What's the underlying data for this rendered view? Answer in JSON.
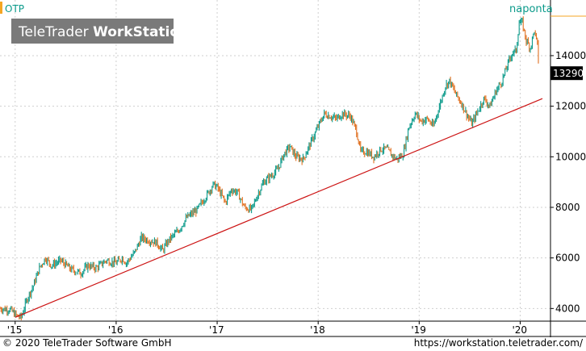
{
  "symbol": "OTP",
  "period_label": "naponta",
  "watermark": {
    "light": "TeleTrader ",
    "bold": "WorkStation"
  },
  "last_price": "13290",
  "footer": {
    "copyright": "© 2020 TeleTrader Software GmbH",
    "url": "https://workstation.teletrader.com/"
  },
  "colors": {
    "up": "#0a9a8a",
    "down": "#e07020",
    "trendline": "#cc1111",
    "accent": "#f5a623",
    "watermark_bg": "#7a7a7a"
  },
  "chart_data": {
    "type": "line",
    "title": "OTP",
    "y_ticks": [
      "4000",
      "6000",
      "8000",
      "10000",
      "12000",
      "14000"
    ],
    "x_ticks": [
      "'15",
      "'16",
      "'17",
      "'18",
      "'19",
      "'20"
    ],
    "ylim": [
      3500,
      16200
    ],
    "xlim": [
      2015.0,
      2020.3
    ],
    "grid": true,
    "series": [
      {
        "values": [
          [
            2014.85,
            4000
          ],
          [
            2014.95,
            3950
          ],
          [
            2015.02,
            3700
          ],
          [
            2015.06,
            3650
          ],
          [
            2015.12,
            4400
          ],
          [
            2015.18,
            4900
          ],
          [
            2015.24,
            5600
          ],
          [
            2015.3,
            6000
          ],
          [
            2015.36,
            5700
          ],
          [
            2015.45,
            5900
          ],
          [
            2015.55,
            5550
          ],
          [
            2015.65,
            5400
          ],
          [
            2015.72,
            5700
          ],
          [
            2015.8,
            5600
          ],
          [
            2015.9,
            5900
          ],
          [
            2016.0,
            5800
          ],
          [
            2016.06,
            6000
          ],
          [
            2016.1,
            5800
          ],
          [
            2016.18,
            6200
          ],
          [
            2016.25,
            6800
          ],
          [
            2016.32,
            6700
          ],
          [
            2016.4,
            6600
          ],
          [
            2016.46,
            6300
          ],
          [
            2016.52,
            6700
          ],
          [
            2016.62,
            7100
          ],
          [
            2016.7,
            7600
          ],
          [
            2016.8,
            7900
          ],
          [
            2016.9,
            8500
          ],
          [
            2016.96,
            8900
          ],
          [
            2017.0,
            8800
          ],
          [
            2017.08,
            8200
          ],
          [
            2017.14,
            8700
          ],
          [
            2017.2,
            8600
          ],
          [
            2017.27,
            8000
          ],
          [
            2017.34,
            7900
          ],
          [
            2017.4,
            8500
          ],
          [
            2017.46,
            9000
          ],
          [
            2017.52,
            9200
          ],
          [
            2017.6,
            9500
          ],
          [
            2017.66,
            10100
          ],
          [
            2017.72,
            10400
          ],
          [
            2017.78,
            10000
          ],
          [
            2017.85,
            9900
          ],
          [
            2017.92,
            10500
          ],
          [
            2018.0,
            11200
          ],
          [
            2018.06,
            11700
          ],
          [
            2018.12,
            11600
          ],
          [
            2018.18,
            11500
          ],
          [
            2018.24,
            11700
          ],
          [
            2018.32,
            11600
          ],
          [
            2018.38,
            11000
          ],
          [
            2018.42,
            10200
          ],
          [
            2018.48,
            10200
          ],
          [
            2018.55,
            10000
          ],
          [
            2018.62,
            10300
          ],
          [
            2018.68,
            10300
          ],
          [
            2018.72,
            10100
          ],
          [
            2018.78,
            9900
          ],
          [
            2018.84,
            10100
          ],
          [
            2018.9,
            11200
          ],
          [
            2018.96,
            11700
          ],
          [
            2019.02,
            11400
          ],
          [
            2019.08,
            11500
          ],
          [
            2019.14,
            11200
          ],
          [
            2019.2,
            12000
          ],
          [
            2019.26,
            12800
          ],
          [
            2019.3,
            13000
          ],
          [
            2019.36,
            12500
          ],
          [
            2019.42,
            12100
          ],
          [
            2019.48,
            11600
          ],
          [
            2019.52,
            11300
          ],
          [
            2019.58,
            11800
          ],
          [
            2019.64,
            12300
          ],
          [
            2019.7,
            12000
          ],
          [
            2019.76,
            12600
          ],
          [
            2019.82,
            13000
          ],
          [
            2019.88,
            13700
          ],
          [
            2019.92,
            14100
          ],
          [
            2019.96,
            14200
          ],
          [
            2019.99,
            15300
          ],
          [
            2020.02,
            15300
          ],
          [
            2020.06,
            14600
          ],
          [
            2020.1,
            14300
          ],
          [
            2020.14,
            15000
          ],
          [
            2020.17,
            14400
          ],
          [
            2020.19,
            13290
          ]
        ]
      },
      {
        "name": "trendline",
        "values": [
          [
            2015.0,
            3650
          ],
          [
            2020.22,
            12300
          ]
        ]
      }
    ]
  }
}
